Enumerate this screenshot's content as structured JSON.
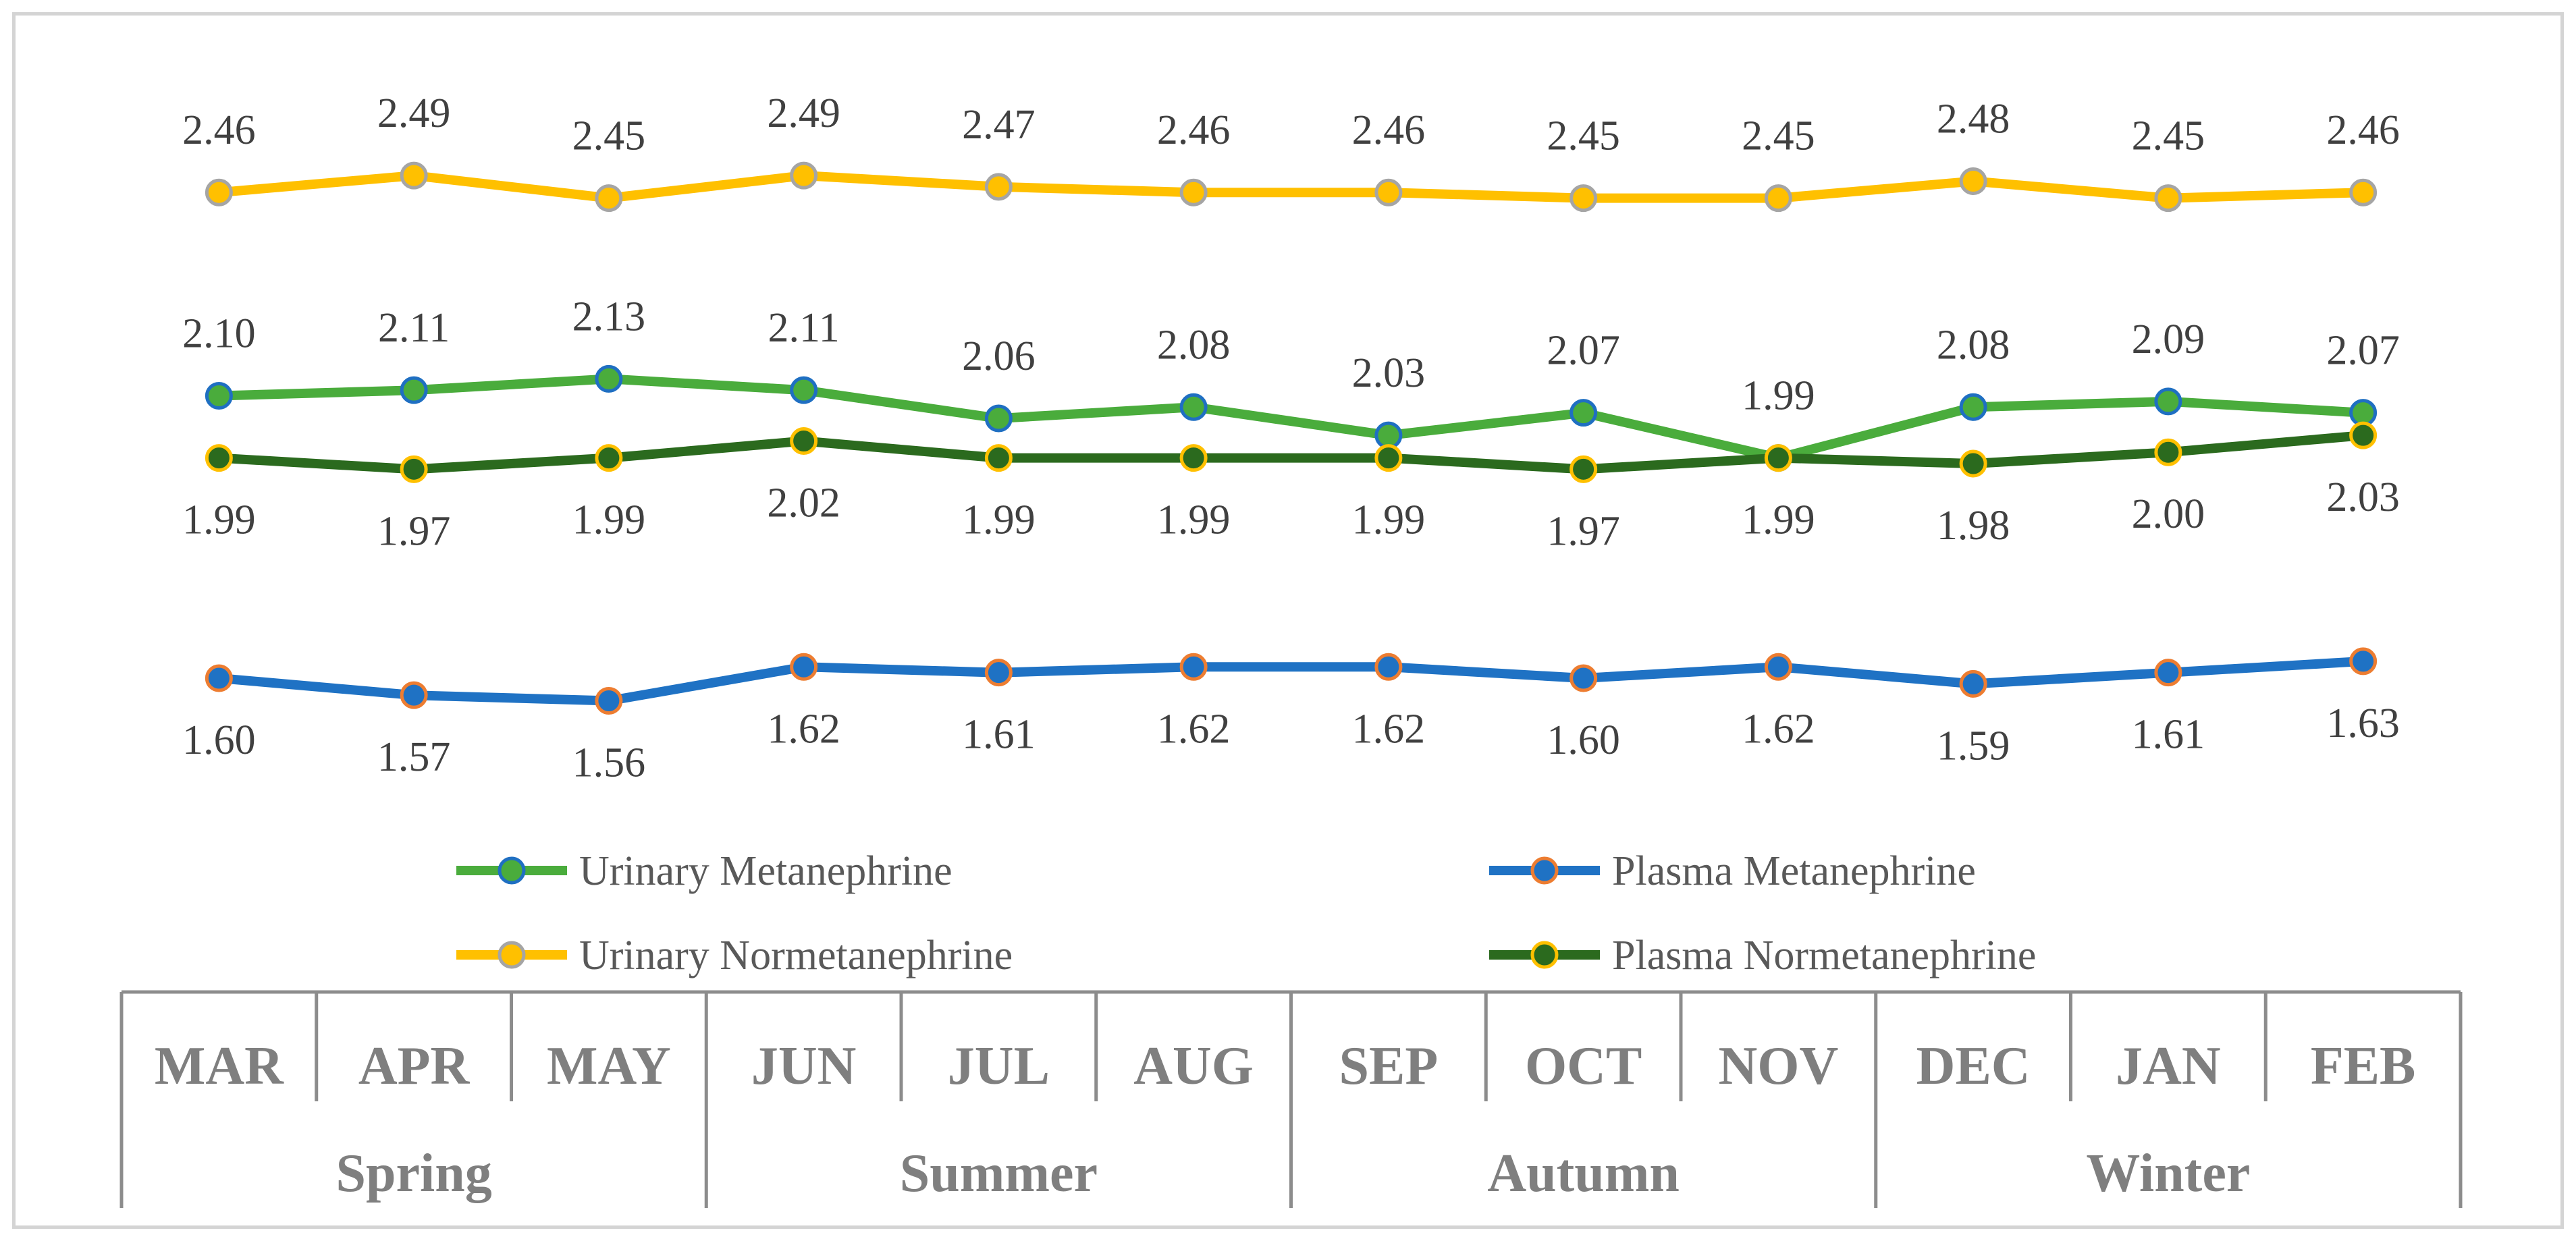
{
  "chart_data": {
    "type": "line",
    "title": "",
    "xlabel": "",
    "ylabel": "",
    "categories": [
      "MAR",
      "APR",
      "MAY",
      "JUN",
      "JUL",
      "AUG",
      "SEP",
      "OCT",
      "NOV",
      "DEC",
      "JAN",
      "FEB"
    ],
    "groups": [
      {
        "label": "Spring",
        "months": [
          "MAR",
          "APR",
          "MAY"
        ]
      },
      {
        "label": "Summer",
        "months": [
          "JUN",
          "JUL",
          "AUG"
        ]
      },
      {
        "label": "Autumn",
        "months": [
          "SEP",
          "OCT",
          "NOV"
        ]
      },
      {
        "label": "Winter",
        "months": [
          "DEC",
          "JAN",
          "FEB"
        ]
      }
    ],
    "grid": false,
    "legend_position": "bottom",
    "series": [
      {
        "key": "um",
        "name": "Urinary Metanephrine",
        "values": [
          2.1,
          2.11,
          2.13,
          2.11,
          2.06,
          2.08,
          2.03,
          2.07,
          1.99,
          2.08,
          2.09,
          2.07
        ],
        "labels": [
          "2.10",
          "2.11",
          "2.13",
          "2.11",
          "2.06",
          "2.08",
          "2.03",
          "2.07",
          "1.99",
          "2.08",
          "2.09",
          "2.07"
        ],
        "line_color": "#4aac3c",
        "marker_fill": "#4aac3c",
        "marker_stroke": "#1f6fc2",
        "label_side": "above"
      },
      {
        "key": "pm",
        "name": "Plasma Metanephrine",
        "values": [
          1.6,
          1.57,
          1.56,
          1.62,
          1.61,
          1.62,
          1.62,
          1.6,
          1.62,
          1.59,
          1.61,
          1.63
        ],
        "labels": [
          "1.60",
          "1.57",
          "1.56",
          "1.62",
          "1.61",
          "1.62",
          "1.62",
          "1.60",
          "1.62",
          "1.59",
          "1.61",
          "1.63"
        ],
        "line_color": "#1f72c4",
        "marker_fill": "#1f72c4",
        "marker_stroke": "#ed7d31",
        "label_side": "below"
      },
      {
        "key": "un",
        "name": "Urinary Normetanephrine",
        "values": [
          2.46,
          2.49,
          2.45,
          2.49,
          2.47,
          2.46,
          2.46,
          2.45,
          2.45,
          2.48,
          2.45,
          2.46
        ],
        "labels": [
          "2.46",
          "2.49",
          "2.45",
          "2.49",
          "2.47",
          "2.46",
          "2.46",
          "2.45",
          "2.45",
          "2.48",
          "2.45",
          "2.46"
        ],
        "line_color": "#ffc000",
        "marker_fill": "#ffc000",
        "marker_stroke": "#a5a5a5",
        "label_side": "above"
      },
      {
        "key": "pn",
        "name": "Plasma Normetanephrine",
        "values": [
          1.99,
          1.97,
          1.99,
          2.02,
          1.99,
          1.99,
          1.99,
          1.97,
          1.99,
          1.98,
          2.0,
          2.03
        ],
        "labels": [
          "1.99",
          "1.97",
          "1.99",
          "2.02",
          "1.99",
          "1.99",
          "1.99",
          "1.97",
          "1.99",
          "1.98",
          "2.00",
          "2.03"
        ],
        "line_color": "#2b6a1e",
        "marker_fill": "#2b6a1e",
        "marker_stroke": "#ffc000",
        "label_side": "below"
      }
    ]
  }
}
